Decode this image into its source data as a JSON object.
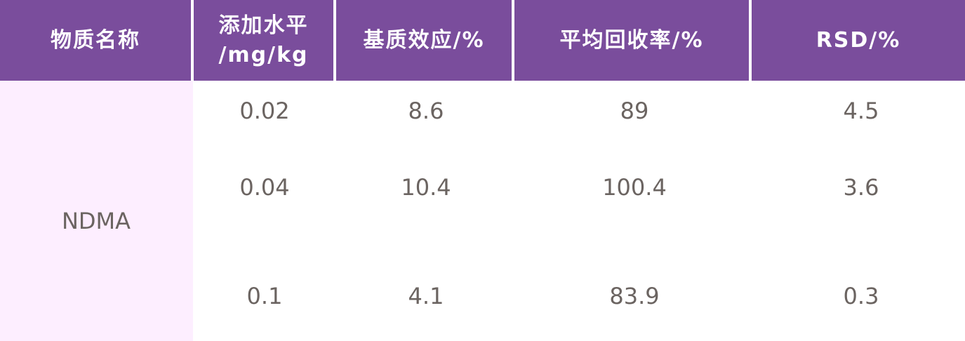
{
  "table": {
    "headers": [
      "物质名称",
      "添加水平\n/mg/kg",
      "基质效应/%",
      "平均回收率/%",
      "RSD/%"
    ],
    "header_line1_col2": "添加水平",
    "header_line2_col2": "/mg/kg",
    "substance": "NDMA",
    "rows": [
      [
        "0.02",
        "8.6",
        "89",
        "4.5"
      ],
      [
        "0.04",
        "10.4",
        "100.4",
        "3.6"
      ],
      [
        "0.1",
        "4.1",
        "83.9",
        "0.3"
      ]
    ]
  },
  "colors": {
    "header_bg": "#7a4d9c",
    "name_col_bg": "#fdeeff",
    "text": "#6b6461"
  }
}
